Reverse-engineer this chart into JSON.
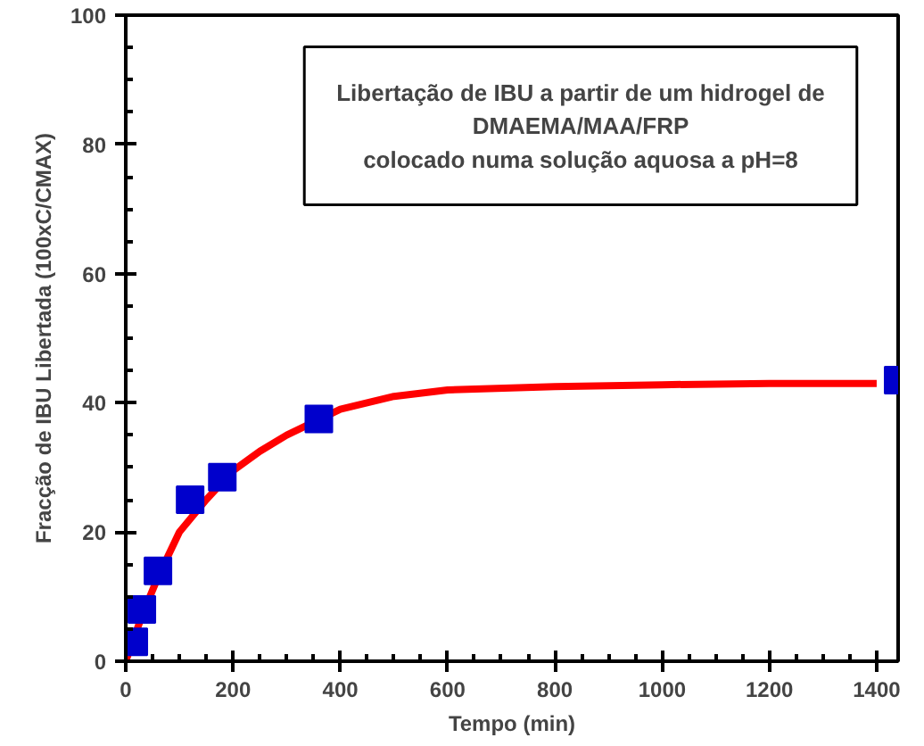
{
  "chart_data": {
    "type": "scatter",
    "xlabel": "Tempo (min)",
    "ylabel": "Fracção de IBU Libertada (100xC/CMAX)",
    "annotations": [
      "Libertação de IBU a partir de um hidrogel de\nDMAEMA/MAA/FRP\ncolocado numa solução aquosa a pH=8"
    ],
    "xlim": [
      0,
      1440
    ],
    "ylim": [
      0,
      100
    ],
    "xticks": [
      0,
      200,
      400,
      600,
      800,
      1000,
      1200,
      1400
    ],
    "yticks": [
      0,
      20,
      40,
      60,
      80,
      100
    ],
    "grid": false,
    "series": [
      {
        "type": "line",
        "color": "#ff0000",
        "line_style": "solid",
        "marker": "none",
        "x": [
          0,
          30,
          60,
          100,
          150,
          200,
          250,
          300,
          400,
          500,
          600,
          800,
          1000,
          1200,
          1400
        ],
        "values": [
          0,
          7,
          13,
          20,
          25,
          29.5,
          32.5,
          35,
          39,
          41,
          42,
          42.5,
          42.8,
          43,
          43
        ]
      },
      {
        "color": "#0000cc",
        "marker": "square",
        "x": [
          15,
          30,
          60,
          120,
          180,
          360,
          1440
        ],
        "values": [
          3,
          8,
          14,
          25,
          28.5,
          37.5,
          43.5
        ]
      }
    ]
  }
}
